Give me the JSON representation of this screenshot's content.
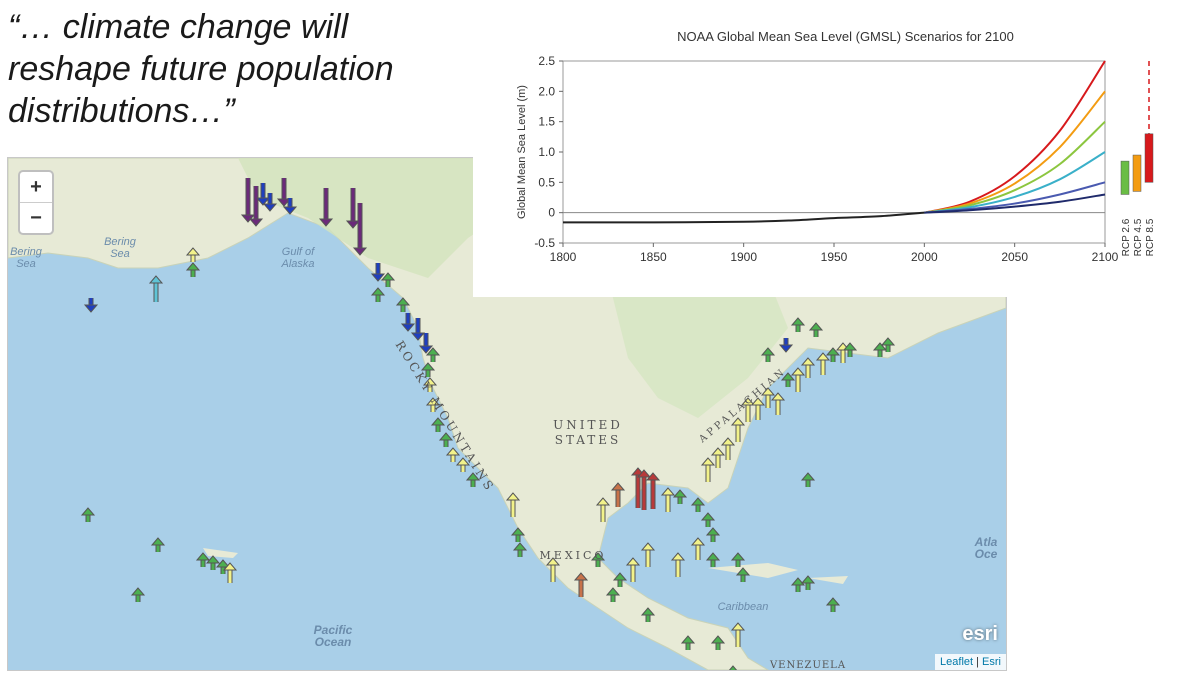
{
  "quote": {
    "line1": "“… climate change will",
    "line2": "reshape future population",
    "line3": "distributions…”"
  },
  "map": {
    "zoom_in": "+",
    "zoom_out": "−",
    "labels": {
      "bering_sea_1": "Bering Sea",
      "bering_sea_2": "Bering Sea",
      "gulf_of_alaska": "Gulf of Alaska",
      "rocky_mountains": "ROCKY MOUNTAINS",
      "united_states": "UNITED STATES",
      "appalachian": "APPALACHIAN",
      "mexico": "MEXICO",
      "caribbean": "Caribbean",
      "pacific_ocean": "Pacific Ocean",
      "atlantic_ocean": "Atla Oce",
      "venezuela": "VENEZUELA"
    },
    "logo": "esri",
    "attribution_leaflet": "Leaflet",
    "attribution_sep": " | ",
    "attribution_esri": "Esri",
    "colors": {
      "water": "#a9cfe8",
      "land": "#e9ecd9",
      "green": "#4caf50",
      "yellow": "#f2f28a",
      "red": "#b83a3a",
      "orange": "#c8734a",
      "blue": "#1f3fbf",
      "purple": "#6b2a7a",
      "cyan": "#5fc4d6"
    }
  },
  "chart_data": {
    "type": "line",
    "title": "NOAA Global Mean Sea Level (GMSL) Scenarios for 2100",
    "xlabel": "",
    "ylabel": "Global Mean Sea Level (m)",
    "xlim": [
      1800,
      2100
    ],
    "ylim": [
      -0.5,
      2.5
    ],
    "x_ticks": [
      1800,
      1850,
      1900,
      1950,
      2000,
      2050,
      2100
    ],
    "y_ticks": [
      -0.5,
      0,
      0.5,
      1.0,
      1.5,
      2.0,
      2.5
    ],
    "y_tick_labels": [
      "-0.5",
      "0",
      "0.5",
      "1.0",
      "1.5",
      "2.0",
      "2.5"
    ],
    "historical": {
      "x": [
        1800,
        1850,
        1900,
        1925,
        1950,
        1975,
        2000
      ],
      "y": [
        -0.16,
        -0.16,
        -0.15,
        -0.13,
        -0.09,
        -0.06,
        0.0
      ]
    },
    "series": [
      {
        "color": "#d7191c",
        "x": [
          2000,
          2025,
          2050,
          2075,
          2100
        ],
        "y": [
          0,
          0.18,
          0.6,
          1.35,
          2.5
        ]
      },
      {
        "color": "#f39c12",
        "x": [
          2000,
          2025,
          2050,
          2075,
          2100
        ],
        "y": [
          0,
          0.15,
          0.48,
          1.08,
          2.0
        ]
      },
      {
        "color": "#8cc63f",
        "x": [
          2000,
          2025,
          2050,
          2075,
          2100
        ],
        "y": [
          0,
          0.12,
          0.37,
          0.8,
          1.5
        ]
      },
      {
        "color": "#3ab0c9",
        "x": [
          2000,
          2025,
          2050,
          2075,
          2100
        ],
        "y": [
          0,
          0.09,
          0.26,
          0.55,
          1.0
        ]
      },
      {
        "color": "#4a5ab0",
        "x": [
          2000,
          2025,
          2050,
          2075,
          2100
        ],
        "y": [
          0,
          0.06,
          0.15,
          0.3,
          0.5
        ]
      },
      {
        "color": "#1f2a6b",
        "x": [
          2000,
          2025,
          2050,
          2075,
          2100
        ],
        "y": [
          0,
          0.04,
          0.1,
          0.18,
          0.3
        ]
      }
    ],
    "rcp_ranges": [
      {
        "label": "RCP 2.6",
        "color": "#6abd45",
        "low": 0.3,
        "high": 0.85
      },
      {
        "label": "RCP 4.5",
        "color": "#f39c12",
        "low": 0.35,
        "high": 0.95
      },
      {
        "label": "RCP 8.5",
        "color": "#d7191c",
        "low": 0.5,
        "high": 1.3
      }
    ],
    "rcp85_dashed_top": 2.5,
    "legend": "none"
  }
}
